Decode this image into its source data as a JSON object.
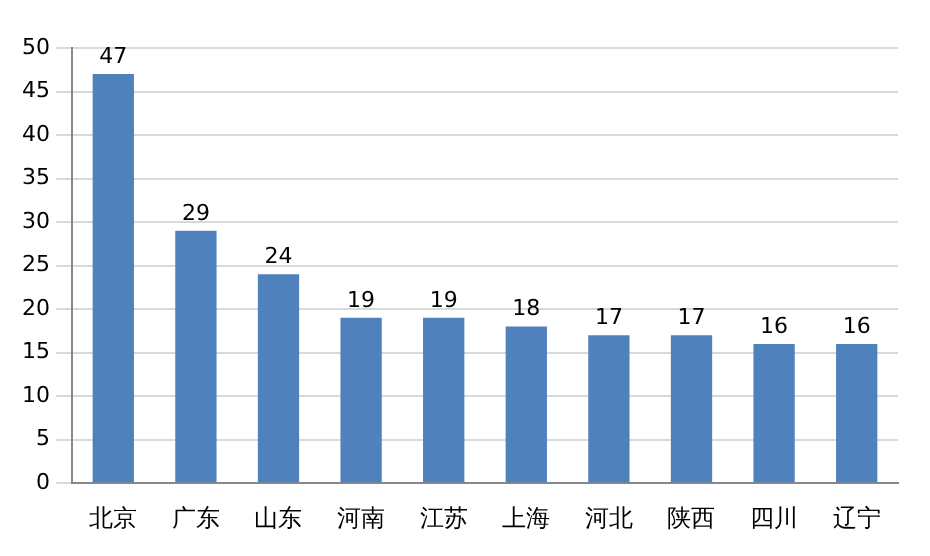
{
  "chart_data": {
    "type": "bar",
    "categories": [
      "北京",
      "广东",
      "山东",
      "河南",
      "江苏",
      "上海",
      "河北",
      "陕西",
      "四川",
      "辽宁"
    ],
    "values": [
      47,
      29,
      24,
      19,
      19,
      18,
      17,
      17,
      16,
      16
    ],
    "color": "#4f81bd",
    "ylim": [
      0,
      50
    ],
    "yticks": [
      0,
      5,
      10,
      15,
      20,
      25,
      30,
      35,
      40,
      45,
      50
    ],
    "grid": "y",
    "data_labels": true
  }
}
